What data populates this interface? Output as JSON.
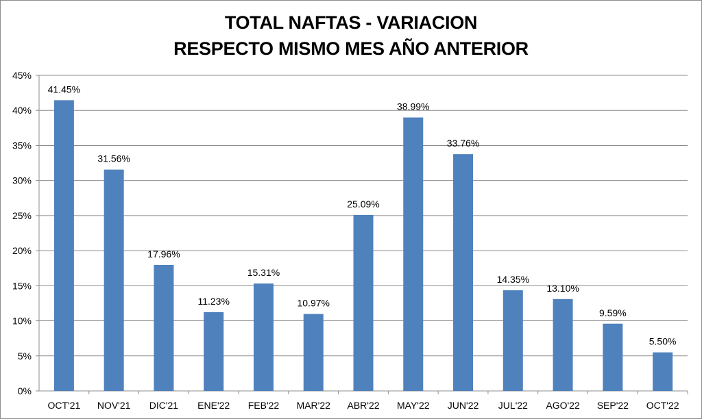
{
  "chart_data": {
    "type": "bar",
    "title_line1": "TOTAL NAFTAS - VARIACION",
    "title_line2": "RESPECTO MISMO MES AÑO ANTERIOR",
    "categories": [
      "OCT'21",
      "NOV'21",
      "DIC'21",
      "ENE'22",
      "FEB'22",
      "MAR'22",
      "ABR'22",
      "MAY'22",
      "JUN'22",
      "JUL'22",
      "AGO'22",
      "SEP'22",
      "OCT'22"
    ],
    "values": [
      41.45,
      31.56,
      17.96,
      11.23,
      15.31,
      10.97,
      25.09,
      38.99,
      33.76,
      14.35,
      13.1,
      9.59,
      5.5
    ],
    "data_labels": [
      "41.45%",
      "31.56%",
      "17.96%",
      "11.23%",
      "15.31%",
      "10.97%",
      "25.09%",
      "38.99%",
      "33.76%",
      "14.35%",
      "13.10%",
      "9.59%",
      "5.50%"
    ],
    "y_ticks": [
      "0%",
      "5%",
      "10%",
      "15%",
      "20%",
      "25%",
      "30%",
      "35%",
      "40%",
      "45%"
    ],
    "ylim": [
      0,
      45
    ],
    "grid": true,
    "legend": "none",
    "bar_color": "#4f81bd",
    "grid_color": "#8c8c8c"
  }
}
